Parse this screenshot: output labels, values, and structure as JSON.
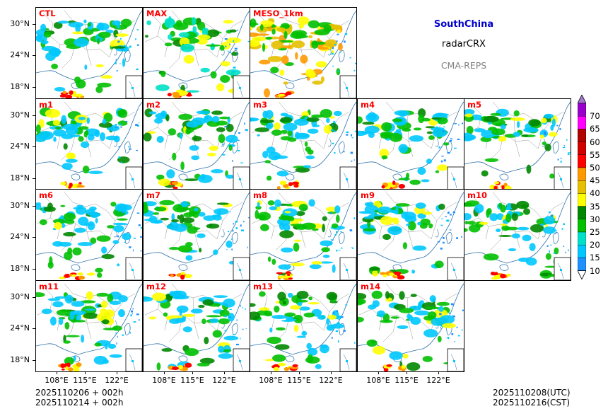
{
  "header": {
    "region": "SouthChina",
    "variable": "radarCRX",
    "system": "CMA-REPS",
    "region_color": "#0000cc",
    "system_color": "#808080"
  },
  "panels": [
    {
      "label": "CTL"
    },
    {
      "label": "MAX"
    },
    {
      "label": "MESO_1km"
    },
    {
      "label": "m1"
    },
    {
      "label": "m2"
    },
    {
      "label": "m3"
    },
    {
      "label": "m4"
    },
    {
      "label": "m5"
    },
    {
      "label": "m6"
    },
    {
      "label": "m7"
    },
    {
      "label": "m8"
    },
    {
      "label": "m9"
    },
    {
      "label": "m10"
    },
    {
      "label": "m11"
    },
    {
      "label": "m12"
    },
    {
      "label": "m13"
    },
    {
      "label": "m14"
    }
  ],
  "axes": {
    "lat_ticks": [
      "30°N",
      "24°N",
      "18°N"
    ],
    "lon_ticks": [
      "108°E",
      "115°E",
      "122°E"
    ]
  },
  "colorbar": {
    "levels": [
      "10",
      "15",
      "20",
      "25",
      "30",
      "35",
      "40",
      "45",
      "50",
      "55",
      "60",
      "65",
      "70"
    ],
    "colors": [
      "#1e90ff",
      "#00c8ff",
      "#00e0c8",
      "#00c000",
      "#008800",
      "#ffff00",
      "#e6c000",
      "#ff9900",
      "#ff0000",
      "#d00000",
      "#b00000",
      "#ff00ff",
      "#9900cc"
    ],
    "lower_extend_color": "#ffffff",
    "upper_extend_color": "#a078d0"
  },
  "footer": {
    "init_utc": "2025110206  +  002h",
    "init_cst": "2025110214  +  002h",
    "valid_utc": "2025110208(UTC)",
    "valid_cst": "2025110216(CST)"
  }
}
